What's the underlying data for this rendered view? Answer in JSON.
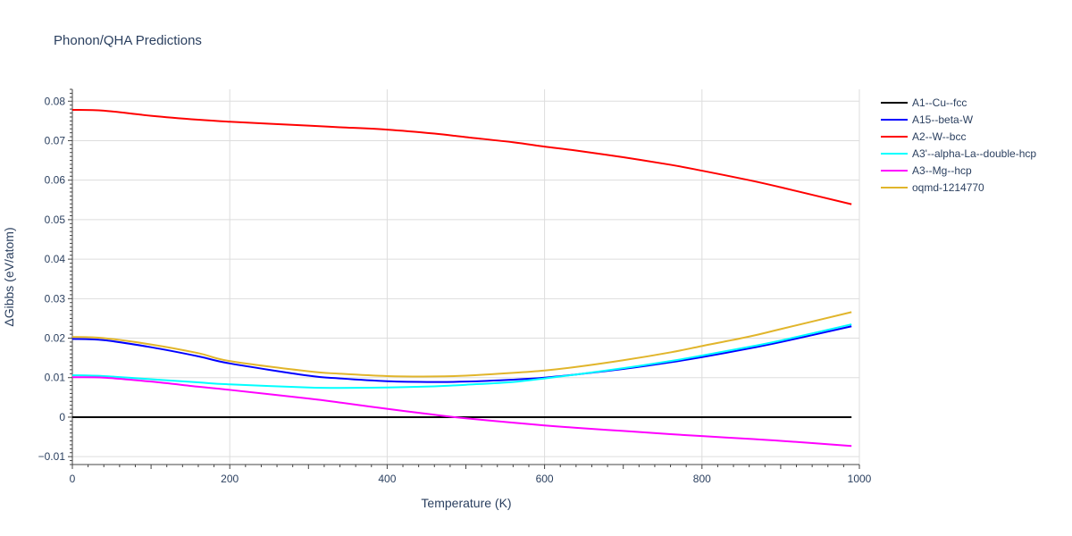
{
  "chart_data": {
    "type": "line",
    "title": "Phonon/QHA Predictions",
    "xlabel": "Temperature (K)",
    "ylabel": "ΔGibbs (eV/atom)",
    "xlim": [
      0,
      1000
    ],
    "ylim": [
      -0.012,
      0.083
    ],
    "xticks": [
      0,
      200,
      400,
      600,
      800,
      1000
    ],
    "xtick_labels": [
      "0",
      "200",
      "400",
      "600",
      "800",
      "1000"
    ],
    "yticks": [
      -0.01,
      0,
      0.01,
      0.02,
      0.03,
      0.04,
      0.05,
      0.06,
      0.07,
      0.08
    ],
    "ytick_labels": [
      "−0.01",
      "0",
      "0.01",
      "0.02",
      "0.03",
      "0.04",
      "0.05",
      "0.06",
      "0.07",
      "0.08"
    ],
    "grid": true,
    "legend_position": "right",
    "x": [
      0,
      40,
      100,
      160,
      200,
      300,
      340,
      400,
      460,
      500,
      560,
      600,
      640,
      700,
      760,
      800,
      860,
      900,
      990
    ],
    "series": [
      {
        "name": "A1--Cu--fcc",
        "color": "#000000",
        "values": [
          0,
          0,
          0,
          0,
          0,
          0,
          0,
          0,
          0,
          0,
          0,
          0,
          0,
          0,
          0,
          0,
          0,
          0,
          0
        ]
      },
      {
        "name": "A15--beta-W",
        "color": "#0000ff",
        "values": [
          0.0198,
          0.0195,
          0.0177,
          0.0154,
          0.0136,
          0.0105,
          0.0098,
          0.0091,
          0.0089,
          0.009,
          0.0095,
          0.01,
          0.0108,
          0.0122,
          0.0139,
          0.0152,
          0.0174,
          0.019,
          0.023
        ]
      },
      {
        "name": "A2--W--bcc",
        "color": "#ff0000",
        "values": [
          0.0778,
          0.0776,
          0.0763,
          0.0753,
          0.0748,
          0.0738,
          0.0734,
          0.0728,
          0.0718,
          0.0709,
          0.0696,
          0.0685,
          0.0675,
          0.0658,
          0.0639,
          0.0624,
          0.06,
          0.0582,
          0.0539
        ]
      },
      {
        "name": "A3'--alpha-La--double-hcp",
        "color": "#00ffff",
        "values": [
          0.0106,
          0.0104,
          0.0096,
          0.0088,
          0.0083,
          0.0075,
          0.0074,
          0.0075,
          0.0078,
          0.0082,
          0.0089,
          0.0098,
          0.0108,
          0.0124,
          0.0142,
          0.0156,
          0.0178,
          0.0194,
          0.0235
        ]
      },
      {
        "name": "A3--Mg--hcp",
        "color": "#ff00ff",
        "values": [
          0.0101,
          0.01,
          0.009,
          0.0077,
          0.0069,
          0.0047,
          0.0037,
          0.0021,
          0.0006,
          -0.0003,
          -0.0014,
          -0.0021,
          -0.0027,
          -0.0035,
          -0.0043,
          -0.0048,
          -0.0055,
          -0.006,
          -0.0073
        ]
      },
      {
        "name": "oqmd-1214770",
        "color": "#e1b52b",
        "values": [
          0.0203,
          0.02,
          0.0184,
          0.0162,
          0.0142,
          0.0116,
          0.011,
          0.0104,
          0.0103,
          0.0105,
          0.0112,
          0.0118,
          0.0127,
          0.0144,
          0.0164,
          0.018,
          0.0204,
          0.0223,
          0.0266
        ]
      }
    ]
  }
}
